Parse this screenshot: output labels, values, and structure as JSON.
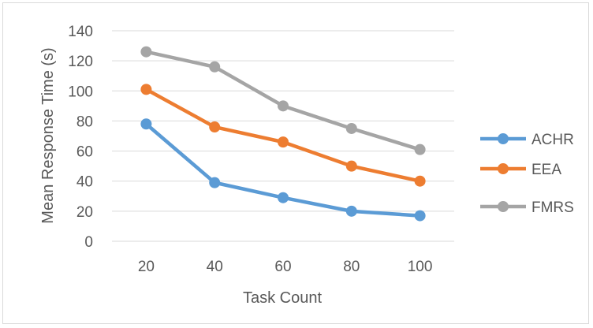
{
  "chart_data": {
    "type": "line",
    "title": "",
    "xlabel": "Task Count",
    "ylabel": "Mean Response Time (s)",
    "categories": [
      "20",
      "40",
      "60",
      "80",
      "100"
    ],
    "ylim": [
      0,
      140
    ],
    "yticks": [
      "0",
      "20",
      "40",
      "60",
      "80",
      "100",
      "120",
      "140"
    ],
    "grid": true,
    "legend_position": "right",
    "series": [
      {
        "name": "ACHR",
        "color": "#5b9bd5",
        "values": [
          78,
          39,
          29,
          20,
          17
        ]
      },
      {
        "name": "EEA",
        "color": "#ed7d31",
        "values": [
          101,
          76,
          66,
          50,
          40
        ]
      },
      {
        "name": "FMRS",
        "color": "#a5a5a5",
        "values": [
          126,
          116,
          90,
          75,
          61
        ]
      }
    ]
  }
}
